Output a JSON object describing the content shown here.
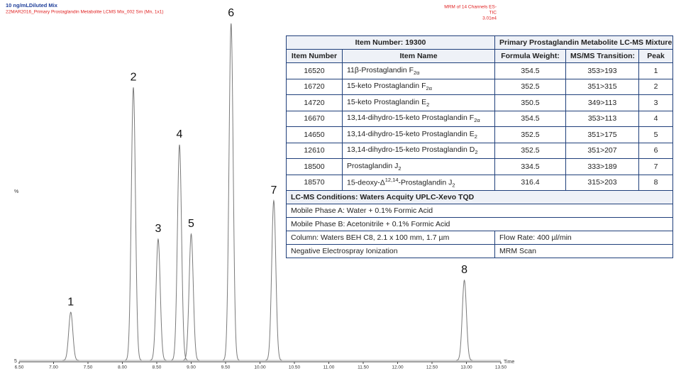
{
  "chart_data": {
    "type": "chromatogram",
    "title": "10 ng/mLDiluted Mix",
    "subtitle": "22MAR2016_Primary Prostaglandin Metabolite LCMS Mix_002 Sm (Mn, 1x1)",
    "annotations": [
      "MRM of 14 Channels ES-",
      "TIC",
      "3.01e4"
    ],
    "ylabel": "%",
    "y_corner_label": "5",
    "xlabel": "Time",
    "color": "#7a7a7a",
    "peaks": {
      "labels": [
        "1",
        "2",
        "3",
        "4",
        "5",
        "6",
        "7",
        "8"
      ],
      "x": [
        7.25,
        8.16,
        8.52,
        8.83,
        9.0,
        9.58,
        10.2,
        12.97
      ],
      "values": [
        14.3,
        81,
        36,
        64,
        37.5,
        100,
        47.4,
        23.8
      ]
    },
    "xlim": [
      6.5,
      13.5
    ],
    "ylim": [
      0,
      100
    ],
    "xticks": [
      {
        "value": 6.5,
        "label": "6.50"
      },
      {
        "value": 7,
        "label": "7.00"
      },
      {
        "value": 7.5,
        "label": "7.50"
      },
      {
        "value": 8,
        "label": "8.00"
      },
      {
        "value": 8.5,
        "label": "8.50"
      },
      {
        "value": 9,
        "label": "9.00"
      },
      {
        "value": 9.5,
        "label": "9.50"
      },
      {
        "value": 10,
        "label": "10.00"
      },
      {
        "value": 10.5,
        "label": "10.50"
      },
      {
        "value": 11,
        "label": "11.00"
      },
      {
        "value": 11.5,
        "label": "11.50"
      },
      {
        "value": 12,
        "label": "12.00"
      },
      {
        "value": 12.5,
        "label": "12.50"
      },
      {
        "value": 13,
        "label": "13.00"
      },
      {
        "value": 13.5,
        "label": "13.50"
      }
    ]
  },
  "table": {
    "title_left": "Item Number: 19300",
    "title_right": "Primary Prostaglandin Metabolite LC-MS Mixture",
    "columns": [
      "Item Number",
      "Item Name",
      "Formula Weight:",
      "MS/MS Transition:",
      "Peak"
    ],
    "rows": [
      {
        "item": "16520",
        "name": [
          {
            "text": "11β-Prostaglandin F"
          },
          {
            "sub": "2α"
          }
        ],
        "weight": "354.5",
        "transition": "353>193",
        "peak": "1"
      },
      {
        "item": "16720",
        "name": [
          {
            "text": "15-keto Prostaglandin F"
          },
          {
            "sub": "2α"
          }
        ],
        "weight": "352.5",
        "transition": "351>315",
        "peak": "2"
      },
      {
        "item": "14720",
        "name": [
          {
            "text": "15-keto Prostaglandin E"
          },
          {
            "sub": "2"
          }
        ],
        "weight": "350.5",
        "transition": "349>113",
        "peak": "3"
      },
      {
        "item": "16670",
        "name": [
          {
            "text": "13,14-dihydro-15-keto Prostaglandin F"
          },
          {
            "sub": "2α"
          }
        ],
        "weight": "354.5",
        "transition": "353>113",
        "peak": "4"
      },
      {
        "item": "14650",
        "name": [
          {
            "text": "13,14-dihydro-15-keto Prostaglandin E"
          },
          {
            "sub": "2"
          }
        ],
        "weight": "352.5",
        "transition": "351>175",
        "peak": "5"
      },
      {
        "item": "12610",
        "name": [
          {
            "text": "13,14-dihydro-15-keto Prostaglandin D"
          },
          {
            "sub": "2"
          }
        ],
        "weight": "352.5",
        "transition": "351>207",
        "peak": "6"
      },
      {
        "item": "18500",
        "name": [
          {
            "text": "Prostaglandin J"
          },
          {
            "sub": "2"
          }
        ],
        "weight": "334.5",
        "transition": "333>189",
        "peak": "7"
      },
      {
        "item": "18570",
        "name": [
          {
            "text": "15-deoxy-Δ"
          },
          {
            "sup": "12,14"
          },
          {
            "text": "-Prostaglandin J"
          },
          {
            "sub": "2"
          }
        ],
        "weight": "316.4",
        "transition": "315>203",
        "peak": "8"
      }
    ],
    "conditions_title": "LC-MS Conditions: Waters Acquity UPLC-Xevo TQD",
    "conditions": [
      [
        "Mobile Phase A: Water + 0.1% Formic Acid"
      ],
      [
        "Mobile Phase B: Acetonitrile + 0.1% Formic Acid"
      ],
      [
        "Column: Waters BEH C8, 2.1 x 100 mm, 1.7 µm",
        "Flow Rate: 400 µl/min"
      ],
      [
        "Negative Electrospray Ionization",
        "MRM Scan"
      ]
    ]
  }
}
